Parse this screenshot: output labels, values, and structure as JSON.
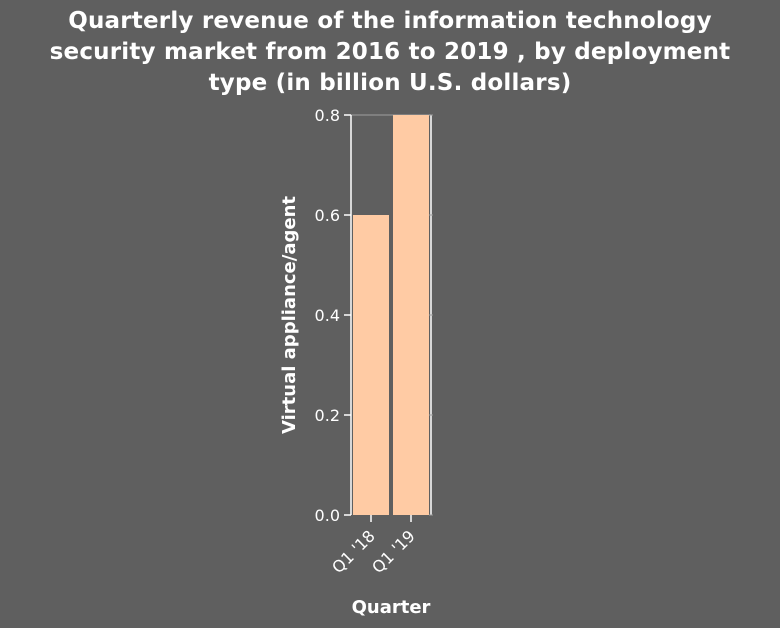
{
  "chart_data": {
    "type": "bar",
    "title": "Quarterly revenue of the information technology\nsecurity market from 2016 to 2019 , by deployment\ntype (in billion U.S. dollars)",
    "xlabel": "Quarter",
    "ylabel": "Virtual appliance/agent",
    "categories": [
      "Q1 '18",
      "Q1 '19"
    ],
    "values": [
      0.6,
      0.8
    ],
    "ylim": [
      0,
      0.8
    ],
    "yticks": [
      "0.0",
      "0.2",
      "0.4",
      "0.6",
      "0.8"
    ],
    "bar_color": "#ffcba4",
    "background_color": "#5f5f5f",
    "grid": false,
    "legend": "none"
  }
}
